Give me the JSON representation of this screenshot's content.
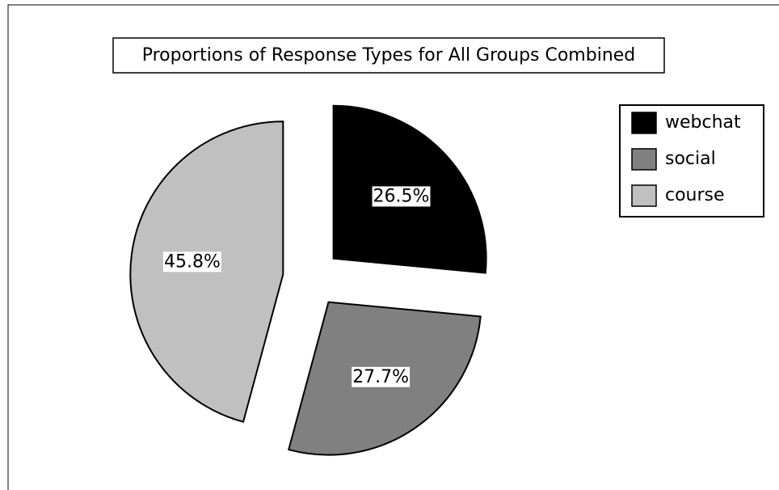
{
  "chart_data": {
    "type": "pie",
    "title": "Proportions of Response Types for All Groups Combined",
    "categories": [
      "webchat",
      "social",
      "course"
    ],
    "values": [
      26.5,
      27.7,
      45.8
    ],
    "value_labels": [
      "26.5%",
      "27.7%",
      "45.8%"
    ],
    "colors": [
      "#000000",
      "#808080",
      "#c0c0c0"
    ],
    "legend": "right"
  }
}
